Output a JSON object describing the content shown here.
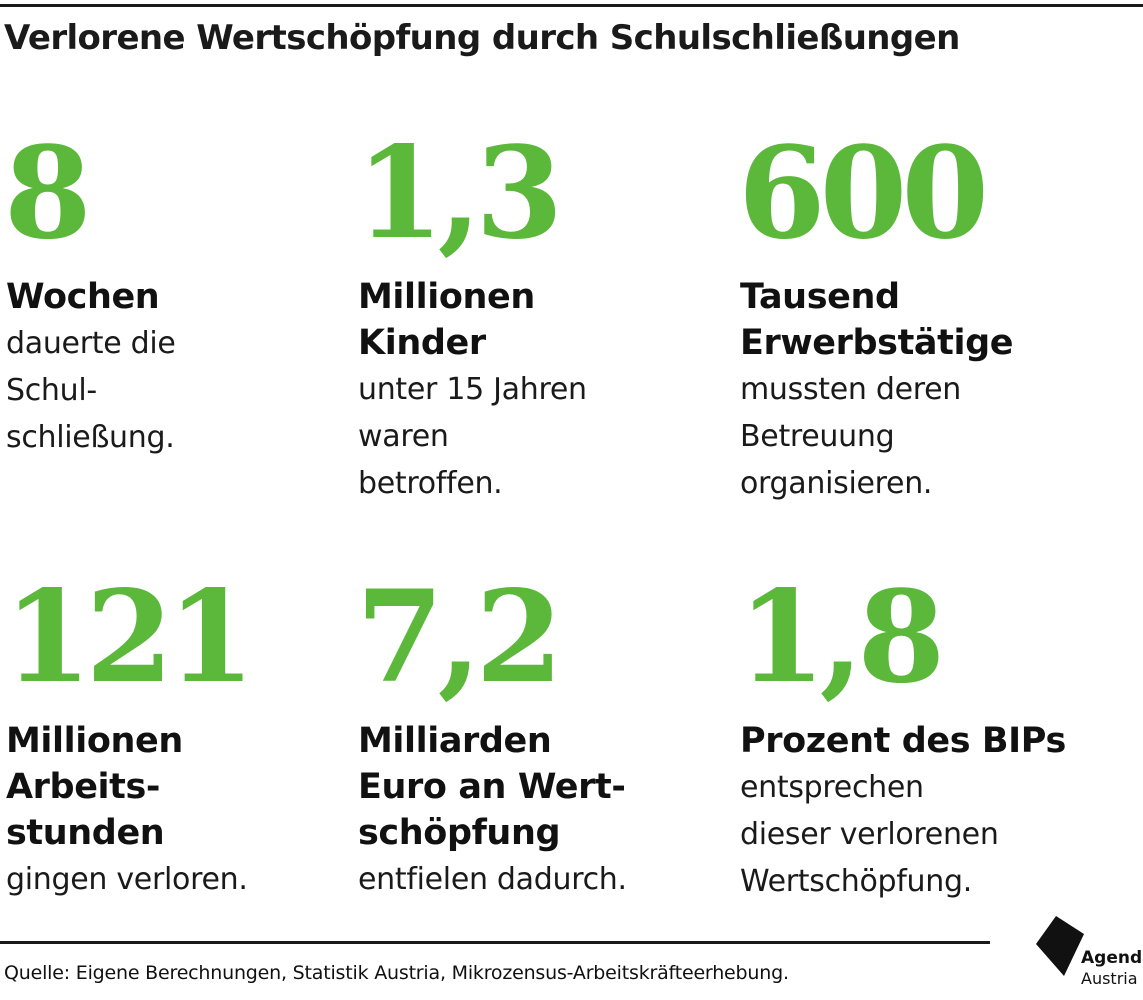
{
  "title": "Verlorene Wertschöpfung durch Schulschließungen",
  "stats": [
    {
      "number": "8",
      "unit": "Wochen",
      "description": "dauerte die\nSchul-\nschließung."
    },
    {
      "number": "1,3",
      "unit": "Millionen\nKinder",
      "description": "unter 15 Jahren\nwaren\nbetroffen."
    },
    {
      "number": "600",
      "unit": "Tausend\nErwerbstätige",
      "description": "mussten deren\nBetreuung\norganisieren."
    },
    {
      "number": "121",
      "unit": "Millionen\nArbeits-\nstunden",
      "description": "gingen verloren."
    },
    {
      "number": "7,2",
      "unit": "Milliarden\nEuro an Wert-\nschöpfung",
      "description": "entfielen dadurch."
    },
    {
      "number": "1,8",
      "unit": "Prozent des BIPs",
      "description": "entsprechen\ndieser verlorenen\nWertschöpfung."
    }
  ],
  "source": "Quelle: Eigene Berechnungen, Statistik Austria, Mikrozensus-Arbeitskräfteerhebung.",
  "logo": {
    "line1": "Agenda",
    "line2": "Austria",
    "icon": "agenda-austria-logo"
  },
  "colors": {
    "accent": "#5cb83b",
    "text": "#111111"
  }
}
